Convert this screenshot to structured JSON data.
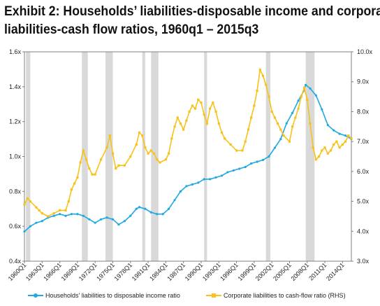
{
  "title": {
    "line1": "Exhibit 2: Households’ liabilities-disposable income and corporate",
    "line2": "liabilities-cash flow ratios, 1960q1 – 2015q3"
  },
  "colors": {
    "households": "#1fa8e1",
    "corporate": "#f7c21a",
    "recession": "#d9d9d9",
    "axis": "#808080"
  },
  "chart_data": {
    "type": "line",
    "x_start": "1960Q1",
    "x_end": "2015Q3",
    "x_tick_labels": [
      "1960Q1",
      "1963Q1",
      "1966Q1",
      "1969Q1",
      "1972Q1",
      "1975Q1",
      "1978Q1",
      "1981Q1",
      "1984Q1",
      "1987Q1",
      "1990Q1",
      "1993Q1",
      "1996Q1",
      "1999Q1",
      "2002Q1",
      "2005Q1",
      "2008Q1",
      "2011Q1",
      "2014Q1"
    ],
    "y_left": {
      "range": [
        0.4,
        1.6
      ],
      "ticks": [
        "0.4x",
        "0.6x",
        "0.8x",
        "1.0x",
        "1.2x",
        "1.4x",
        "1.6x"
      ]
    },
    "y_right": {
      "range": [
        3.0,
        10.0
      ],
      "ticks": [
        "3.0x",
        "4.0x",
        "5.0x",
        "6.0x",
        "7.0x",
        "8.0x",
        "9.0x",
        "10.0x"
      ]
    },
    "recessions": [
      [
        "1960Q2",
        "1961Q1"
      ],
      [
        "1969Q4",
        "1970Q4"
      ],
      [
        "1973Q4",
        "1975Q1"
      ],
      [
        "1980Q1",
        "1980Q3"
      ],
      [
        "1981Q3",
        "1982Q4"
      ],
      [
        "1990Q3",
        "1991Q1"
      ],
      [
        "2001Q1",
        "2001Q4"
      ],
      [
        "2007Q4",
        "2009Q2"
      ]
    ],
    "series": [
      {
        "name": "Households' liabilities to disposable income ratio",
        "axis": "left",
        "points": [
          [
            "1960Q1",
            0.57
          ],
          [
            "1961Q1",
            0.6
          ],
          [
            "1962Q1",
            0.62
          ],
          [
            "1963Q1",
            0.63
          ],
          [
            "1964Q1",
            0.65
          ],
          [
            "1965Q1",
            0.66
          ],
          [
            "1966Q1",
            0.67
          ],
          [
            "1967Q1",
            0.66
          ],
          [
            "1968Q1",
            0.67
          ],
          [
            "1969Q1",
            0.67
          ],
          [
            "1970Q1",
            0.66
          ],
          [
            "1971Q1",
            0.64
          ],
          [
            "1972Q1",
            0.62
          ],
          [
            "1973Q1",
            0.64
          ],
          [
            "1974Q1",
            0.65
          ],
          [
            "1975Q1",
            0.64
          ],
          [
            "1976Q1",
            0.61
          ],
          [
            "1977Q1",
            0.63
          ],
          [
            "1978Q1",
            0.66
          ],
          [
            "1979Q1",
            0.7
          ],
          [
            "1979Q3",
            0.71
          ],
          [
            "1980Q3",
            0.7
          ],
          [
            "1981Q3",
            0.68
          ],
          [
            "1982Q3",
            0.67
          ],
          [
            "1983Q3",
            0.67
          ],
          [
            "1984Q3",
            0.7
          ],
          [
            "1985Q3",
            0.75
          ],
          [
            "1986Q3",
            0.8
          ],
          [
            "1987Q3",
            0.83
          ],
          [
            "1988Q3",
            0.84
          ],
          [
            "1989Q3",
            0.85
          ],
          [
            "1990Q3",
            0.87
          ],
          [
            "1991Q3",
            0.87
          ],
          [
            "1992Q3",
            0.88
          ],
          [
            "1993Q3",
            0.89
          ],
          [
            "1994Q3",
            0.91
          ],
          [
            "1995Q3",
            0.92
          ],
          [
            "1996Q3",
            0.93
          ],
          [
            "1997Q3",
            0.94
          ],
          [
            "1998Q3",
            0.96
          ],
          [
            "1999Q3",
            0.97
          ],
          [
            "2000Q3",
            0.98
          ],
          [
            "2001Q3",
            1.0
          ],
          [
            "2002Q3",
            1.05
          ],
          [
            "2003Q3",
            1.1
          ],
          [
            "2004Q3",
            1.19
          ],
          [
            "2005Q3",
            1.25
          ],
          [
            "2006Q3",
            1.32
          ],
          [
            "2007Q3",
            1.38
          ],
          [
            "2007Q4",
            1.41
          ],
          [
            "2008Q3",
            1.39
          ],
          [
            "2009Q3",
            1.35
          ],
          [
            "2010Q3",
            1.27
          ],
          [
            "2011Q3",
            1.18
          ],
          [
            "2012Q3",
            1.15
          ],
          [
            "2013Q3",
            1.13
          ],
          [
            "2014Q3",
            1.12
          ],
          [
            "2015Q3",
            1.1
          ]
        ]
      },
      {
        "name": "Corporate liabilities to cash-flow ratio (RHS)",
        "axis": "right",
        "points": [
          [
            "1960Q1",
            4.9
          ],
          [
            "1960Q3",
            5.1
          ],
          [
            "1961Q1",
            5.0
          ],
          [
            "1962Q1",
            4.8
          ],
          [
            "1962Q3",
            4.7
          ],
          [
            "1963Q1",
            4.6
          ],
          [
            "1964Q1",
            4.5
          ],
          [
            "1965Q1",
            4.6
          ],
          [
            "1966Q1",
            4.7
          ],
          [
            "1967Q1",
            4.7
          ],
          [
            "1967Q3",
            5.0
          ],
          [
            "1968Q1",
            5.4
          ],
          [
            "1968Q3",
            5.6
          ],
          [
            "1969Q1",
            5.8
          ],
          [
            "1969Q3",
            6.3
          ],
          [
            "1970Q1",
            6.7
          ],
          [
            "1970Q3",
            6.4
          ],
          [
            "1971Q1",
            6.1
          ],
          [
            "1971Q3",
            5.9
          ],
          [
            "1972Q1",
            5.9
          ],
          [
            "1973Q1",
            6.4
          ],
          [
            "1974Q1",
            6.8
          ],
          [
            "1974Q3",
            7.2
          ],
          [
            "1975Q1",
            6.6
          ],
          [
            "1975Q3",
            6.1
          ],
          [
            "1976Q1",
            6.2
          ],
          [
            "1977Q1",
            6.2
          ],
          [
            "1978Q1",
            6.5
          ],
          [
            "1979Q1",
            6.9
          ],
          [
            "1979Q3",
            7.3
          ],
          [
            "1980Q1",
            7.2
          ],
          [
            "1980Q3",
            6.8
          ],
          [
            "1981Q1",
            6.6
          ],
          [
            "1981Q3",
            6.7
          ],
          [
            "1982Q1",
            6.6
          ],
          [
            "1982Q3",
            6.4
          ],
          [
            "1983Q1",
            6.3
          ],
          [
            "1984Q1",
            6.4
          ],
          [
            "1984Q3",
            6.6
          ],
          [
            "1985Q1",
            7.1
          ],
          [
            "1985Q3",
            7.5
          ],
          [
            "1986Q1",
            7.8
          ],
          [
            "1986Q3",
            7.6
          ],
          [
            "1987Q1",
            7.4
          ],
          [
            "1987Q3",
            7.7
          ],
          [
            "1988Q1",
            8.0
          ],
          [
            "1988Q3",
            8.2
          ],
          [
            "1989Q1",
            8.1
          ],
          [
            "1989Q3",
            8.4
          ],
          [
            "1990Q1",
            8.3
          ],
          [
            "1990Q3",
            7.9
          ],
          [
            "1991Q1",
            7.6
          ],
          [
            "1991Q3",
            8.1
          ],
          [
            "1992Q1",
            8.3
          ],
          [
            "1992Q3",
            8.0
          ],
          [
            "1993Q1",
            7.6
          ],
          [
            "1993Q3",
            7.3
          ],
          [
            "1994Q1",
            7.1
          ],
          [
            "1995Q1",
            6.9
          ],
          [
            "1996Q1",
            6.7
          ],
          [
            "1997Q1",
            6.7
          ],
          [
            "1997Q3",
            7.0
          ],
          [
            "1998Q1",
            7.4
          ],
          [
            "1998Q3",
            7.8
          ],
          [
            "1999Q1",
            8.2
          ],
          [
            "1999Q3",
            8.7
          ],
          [
            "2000Q1",
            9.4
          ],
          [
            "2000Q3",
            9.2
          ],
          [
            "2001Q1",
            8.9
          ],
          [
            "2001Q3",
            8.5
          ],
          [
            "2002Q1",
            8.0
          ],
          [
            "2002Q3",
            7.8
          ],
          [
            "2003Q1",
            7.6
          ],
          [
            "2003Q3",
            7.4
          ],
          [
            "2004Q1",
            7.2
          ],
          [
            "2005Q1",
            7.0
          ],
          [
            "2005Q3",
            7.5
          ],
          [
            "2006Q1",
            7.8
          ],
          [
            "2006Q3",
            8.1
          ],
          [
            "2007Q1",
            8.5
          ],
          [
            "2007Q3",
            8.8
          ],
          [
            "2008Q1",
            8.4
          ],
          [
            "2008Q3",
            7.6
          ],
          [
            "2009Q1",
            6.8
          ],
          [
            "2009Q3",
            6.4
          ],
          [
            "2010Q1",
            6.5
          ],
          [
            "2010Q3",
            6.7
          ],
          [
            "2011Q1",
            6.8
          ],
          [
            "2011Q3",
            6.6
          ],
          [
            "2012Q1",
            6.7
          ],
          [
            "2012Q3",
            6.9
          ],
          [
            "2013Q1",
            7.0
          ],
          [
            "2013Q3",
            6.8
          ],
          [
            "2014Q1",
            6.9
          ],
          [
            "2014Q3",
            7.0
          ],
          [
            "2015Q1",
            7.2
          ],
          [
            "2015Q3",
            7.1
          ]
        ]
      }
    ]
  }
}
